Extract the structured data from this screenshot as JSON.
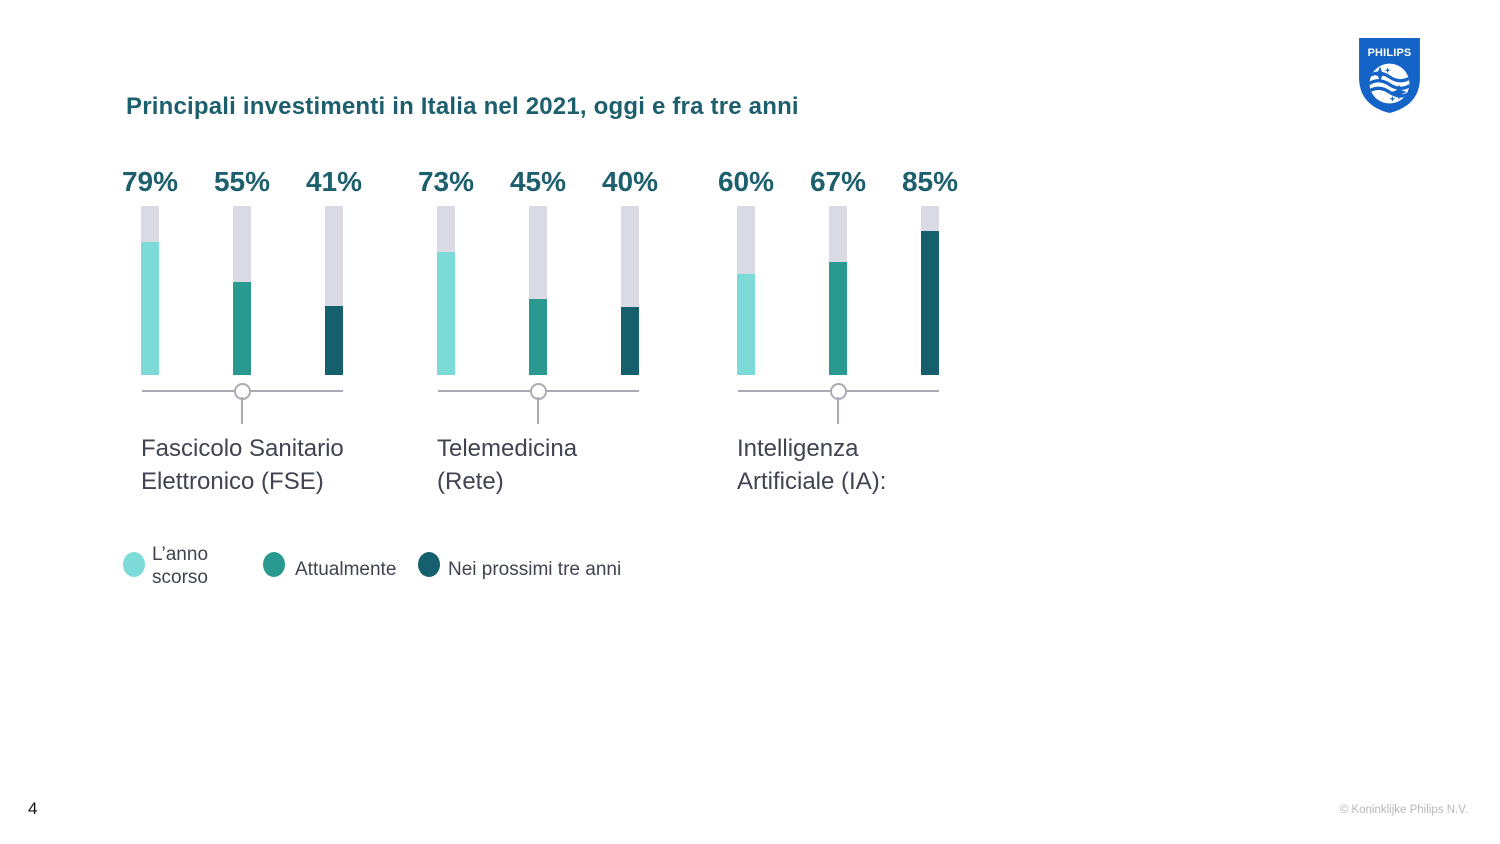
{
  "page": {
    "page_number": "4",
    "copyright": "© Koninklijke Philips N.V."
  },
  "logo": {
    "brand": "PHILIPS",
    "color": "#1464C8"
  },
  "chart_data": {
    "type": "bar",
    "title": "Principali investimenti in Italia nel 2021, oggi e fra tre anni",
    "title_color": "#1E5F6E",
    "unit": "%",
    "ylim": [
      0,
      100
    ],
    "grid": false,
    "legend_position": "bottom-left",
    "track_color": "#D9DAE3",
    "connector_color": "#ABABB5",
    "label_color": "#3F4450",
    "value_label_color": "#1E5F6E",
    "series": [
      {
        "name": "L’anno scorso",
        "color": "#7CDBD9"
      },
      {
        "name": "Attualmente",
        "color": "#2A9A90"
      },
      {
        "name": "Nei prossimi tre anni",
        "color": "#15606C"
      }
    ],
    "groups": [
      {
        "label": "Fascicolo Sanitario Elettronico (FSE)",
        "label_lines": [
          "Fascicolo Sanitario",
          "Elettronico (FSE)"
        ],
        "values": [
          79,
          55,
          41
        ]
      },
      {
        "label": "Telemedicina (Rete)",
        "label_lines": [
          "Telemedicina",
          "(Rete)"
        ],
        "values": [
          73,
          45,
          40
        ]
      },
      {
        "label": "Intelligenza Artificiale (IA):",
        "label_lines": [
          "Intelligenza",
          "Artificiale (IA):"
        ],
        "values": [
          60,
          67,
          85
        ]
      }
    ]
  }
}
